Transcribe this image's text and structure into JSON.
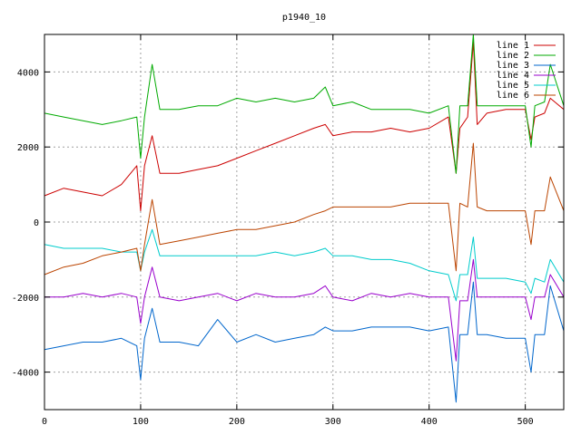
{
  "chart_data": {
    "type": "line",
    "title": "p1940_10",
    "xlabel": "",
    "ylabel": "",
    "xlim": [
      0,
      540
    ],
    "ylim": [
      -5000,
      5000
    ],
    "xticks": [
      0,
      100,
      200,
      300,
      400,
      500
    ],
    "yticks": [
      -4000,
      -2000,
      0,
      2000,
      4000
    ],
    "grid": true,
    "legend_position": "top-right",
    "series": [
      {
        "name": "line 1",
        "color": "#cc0000",
        "x": [
          0,
          20,
          40,
          60,
          80,
          96,
          100,
          104,
          112,
          120,
          140,
          160,
          180,
          200,
          220,
          240,
          260,
          280,
          292,
          300,
          320,
          340,
          360,
          380,
          400,
          420,
          428,
          432,
          440,
          446,
          450,
          460,
          480,
          500,
          506,
          510,
          520,
          526,
          540
        ],
        "y": [
          700,
          900,
          800,
          700,
          1000,
          1500,
          300,
          1500,
          2300,
          1300,
          1300,
          1400,
          1500,
          1700,
          1900,
          2100,
          2300,
          2500,
          2600,
          2300,
          2400,
          2400,
          2500,
          2400,
          2500,
          2800,
          1300,
          2500,
          2800,
          4800,
          2600,
          2900,
          3000,
          3000,
          2200,
          2800,
          2900,
          3300,
          3000
        ]
      },
      {
        "name": "line 2",
        "color": "#00aa00",
        "x": [
          0,
          20,
          40,
          60,
          80,
          96,
          100,
          104,
          112,
          120,
          140,
          160,
          180,
          200,
          220,
          240,
          260,
          280,
          292,
          300,
          320,
          340,
          360,
          380,
          400,
          420,
          428,
          432,
          440,
          446,
          450,
          460,
          480,
          500,
          506,
          510,
          520,
          526,
          540
        ],
        "y": [
          2900,
          2800,
          2700,
          2600,
          2700,
          2800,
          1700,
          2800,
          4200,
          3000,
          3000,
          3100,
          3100,
          3300,
          3200,
          3300,
          3200,
          3300,
          3600,
          3100,
          3200,
          3000,
          3000,
          3000,
          2900,
          3100,
          1300,
          3100,
          3100,
          5000,
          3100,
          3100,
          3100,
          3100,
          2000,
          3100,
          3200,
          4200,
          3100
        ]
      },
      {
        "name": "line 3",
        "color": "#0066cc",
        "x": [
          0,
          20,
          40,
          60,
          80,
          96,
          100,
          104,
          112,
          120,
          140,
          160,
          180,
          200,
          220,
          240,
          260,
          280,
          292,
          300,
          320,
          340,
          360,
          380,
          400,
          420,
          428,
          432,
          440,
          446,
          450,
          460,
          480,
          500,
          506,
          510,
          520,
          526,
          540
        ],
        "y": [
          -3400,
          -3300,
          -3200,
          -3200,
          -3100,
          -3300,
          -4200,
          -3100,
          -2300,
          -3200,
          -3200,
          -3300,
          -2600,
          -3200,
          -3000,
          -3200,
          -3100,
          -3000,
          -2800,
          -2900,
          -2900,
          -2800,
          -2800,
          -2800,
          -2900,
          -2800,
          -4800,
          -3000,
          -3000,
          -1600,
          -3000,
          -3000,
          -3100,
          -3100,
          -4000,
          -3000,
          -3000,
          -1700,
          -2900
        ]
      },
      {
        "name": "line 4",
        "color": "#9900cc",
        "x": [
          0,
          20,
          40,
          60,
          80,
          96,
          100,
          104,
          112,
          120,
          140,
          160,
          180,
          200,
          220,
          240,
          260,
          280,
          292,
          300,
          320,
          340,
          360,
          380,
          400,
          420,
          428,
          432,
          440,
          446,
          450,
          460,
          480,
          500,
          506,
          510,
          520,
          526,
          540
        ],
        "y": [
          -2000,
          -2000,
          -1900,
          -2000,
          -1900,
          -2000,
          -2700,
          -2000,
          -1200,
          -2000,
          -2100,
          -2000,
          -1900,
          -2100,
          -1900,
          -2000,
          -2000,
          -1900,
          -1700,
          -2000,
          -2100,
          -1900,
          -2000,
          -1900,
          -2000,
          -2000,
          -3700,
          -2100,
          -2100,
          -1000,
          -2000,
          -2000,
          -2000,
          -2000,
          -2600,
          -2000,
          -2000,
          -1400,
          -2000
        ]
      },
      {
        "name": "line 5",
        "color": "#00cccc",
        "x": [
          0,
          20,
          40,
          60,
          80,
          96,
          100,
          104,
          112,
          120,
          140,
          160,
          180,
          200,
          220,
          240,
          260,
          280,
          292,
          300,
          320,
          340,
          360,
          380,
          400,
          420,
          428,
          432,
          440,
          446,
          450,
          460,
          480,
          500,
          506,
          510,
          520,
          526,
          540
        ],
        "y": [
          -600,
          -700,
          -700,
          -700,
          -800,
          -800,
          -1300,
          -800,
          -200,
          -900,
          -900,
          -900,
          -900,
          -900,
          -900,
          -800,
          -900,
          -800,
          -700,
          -900,
          -900,
          -1000,
          -1000,
          -1100,
          -1300,
          -1400,
          -2100,
          -1400,
          -1400,
          -400,
          -1500,
          -1500,
          -1500,
          -1600,
          -1900,
          -1500,
          -1600,
          -1000,
          -1600
        ]
      },
      {
        "name": "line 6",
        "color": "#bb4400",
        "x": [
          0,
          20,
          40,
          60,
          80,
          96,
          100,
          104,
          112,
          120,
          140,
          160,
          180,
          200,
          220,
          240,
          260,
          280,
          292,
          300,
          320,
          340,
          360,
          380,
          400,
          420,
          428,
          432,
          440,
          446,
          450,
          460,
          480,
          500,
          506,
          510,
          520,
          526,
          540
        ],
        "y": [
          -1400,
          -1200,
          -1100,
          -900,
          -800,
          -700,
          -1300,
          -600,
          600,
          -600,
          -500,
          -400,
          -300,
          -200,
          -200,
          -100,
          0,
          200,
          300,
          400,
          400,
          400,
          400,
          500,
          500,
          500,
          -1300,
          500,
          400,
          2100,
          400,
          300,
          300,
          300,
          -600,
          300,
          300,
          1200,
          300
        ]
      }
    ]
  }
}
